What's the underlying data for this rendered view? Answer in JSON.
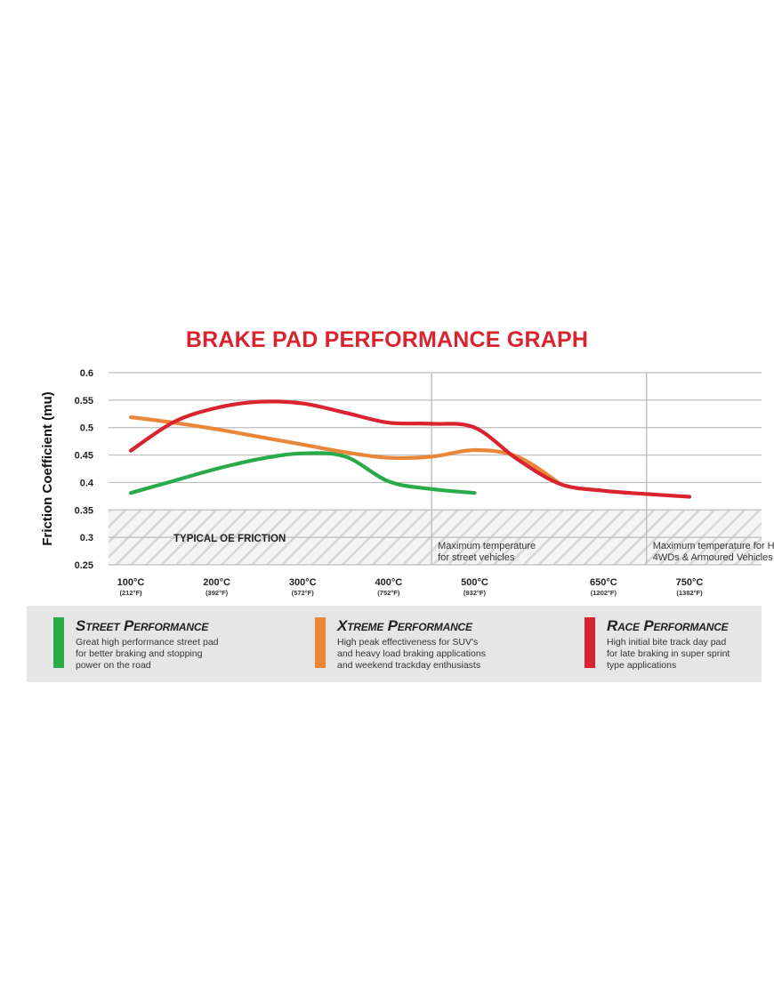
{
  "chart_data": {
    "type": "line",
    "title": "BRAKE PAD PERFORMANCE GRAPH",
    "ylabel": "Friction Coefficient (mu)",
    "xlabel": "",
    "ylim": [
      0.25,
      0.6
    ],
    "yticks": [
      "0.6",
      "0.55",
      "0.5",
      "0.45",
      "0.4",
      "0.35",
      "0.3",
      "0.25"
    ],
    "xlim": [
      100,
      750
    ],
    "xticks": [
      {
        "value": 100,
        "c": "100°C",
        "f": "(212°F)"
      },
      {
        "value": 200,
        "c": "200°C",
        "f": "(392°F)"
      },
      {
        "value": 300,
        "c": "300°C",
        "f": "(572°F)"
      },
      {
        "value": 400,
        "c": "400°C",
        "f": "(752°F)"
      },
      {
        "value": 500,
        "c": "500°C",
        "f": "(932°F)"
      },
      {
        "value": 650,
        "c": "650°C",
        "f": "(1202°F)"
      },
      {
        "value": 750,
        "c": "750°C",
        "f": "(1382°F)"
      }
    ],
    "grid": true,
    "series": [
      {
        "name": "Street Performance",
        "color": "#2aab4a",
        "x": [
          100,
          150,
          200,
          250,
          300,
          350,
          400,
          450,
          500
        ],
        "y": [
          0.381,
          0.403,
          0.425,
          0.443,
          0.453,
          0.447,
          0.402,
          0.388,
          0.381
        ]
      },
      {
        "name": "Xtreme Performance",
        "color": "#e8873a",
        "x": [
          100,
          150,
          200,
          250,
          300,
          350,
          400,
          450,
          500,
          550,
          600
        ],
        "y": [
          0.519,
          0.509,
          0.497,
          0.483,
          0.469,
          0.455,
          0.445,
          0.447,
          0.459,
          0.447,
          0.397
        ]
      },
      {
        "name": "Race Performance",
        "color": "#d9232e",
        "x": [
          100,
          150,
          200,
          250,
          300,
          350,
          400,
          450,
          500,
          550,
          600,
          650,
          700,
          750
        ],
        "y": [
          0.458,
          0.51,
          0.536,
          0.547,
          0.544,
          0.527,
          0.509,
          0.507,
          0.5,
          0.442,
          0.397,
          0.385,
          0.379,
          0.374
        ]
      }
    ],
    "annotations": {
      "oe_band": {
        "from": 0.25,
        "to": 0.35,
        "label": "TYPICAL OE FRICTION"
      },
      "limit_lines": [
        {
          "x": 450,
          "label": [
            "Maximum temperature",
            "for street vehicles"
          ]
        },
        {
          "x": 700,
          "label": [
            "Maximum temperature for Heavy towing,",
            "4WDs & Armoured Vehicles"
          ]
        }
      ]
    }
  },
  "legend": [
    {
      "name": "Street Performance",
      "color": "#2aab4a",
      "lines": [
        "Great high performance street pad",
        "for better braking and stopping",
        "power on the road"
      ]
    },
    {
      "name": "Xtreme Performance",
      "color": "#e8873a",
      "lines": [
        "High peak effectiveness for SUV's",
        "and heavy load braking applications",
        "and weekend trackday enthusiasts"
      ]
    },
    {
      "name": "Race Performance",
      "color": "#d9232e",
      "lines": [
        "High initial bite track day pad",
        "for late braking in super sprint",
        "type applications"
      ]
    }
  ]
}
